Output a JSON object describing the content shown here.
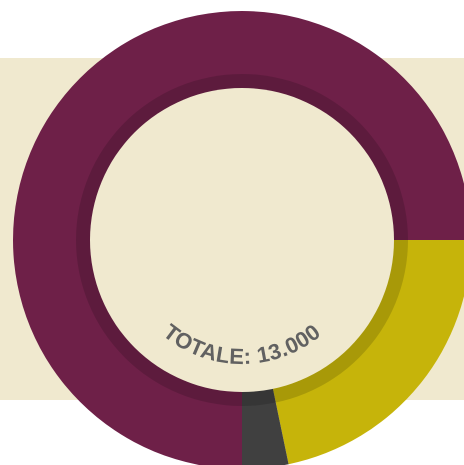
{
  "colors": {
    "background_panel": "#f0e9cf",
    "inner_disc": "#f0e9cf",
    "total_text": "#616161",
    "inner_ring_shadow": "rgba(0,0,0,0.15)"
  },
  "chart_data": {
    "type": "pie",
    "style": "donut",
    "title": "",
    "center_label": "TOTALE: 13.000",
    "total": 13000,
    "slices": [
      {
        "value": 9750,
        "color": "#6e2048"
      },
      {
        "value": 2826,
        "color": "#c6b40a"
      },
      {
        "value": 424,
        "color": "#404040"
      }
    ]
  }
}
